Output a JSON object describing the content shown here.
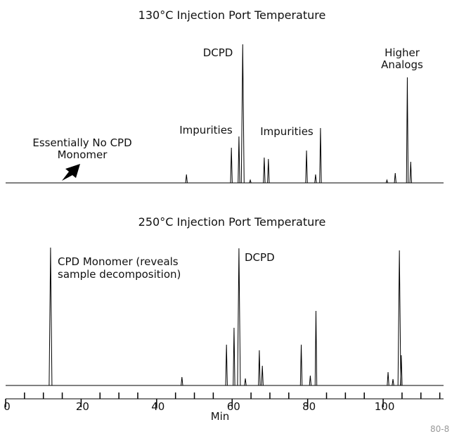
{
  "chart_data": [
    {
      "type": "chromatogram",
      "title": "130°C Injection Port Temperature",
      "annotations": [
        {
          "lines": [
            "DCPD"
          ]
        },
        {
          "lines": [
            "Higher",
            "Analogs"
          ]
        },
        {
          "lines": [
            "Impurities"
          ]
        },
        {
          "lines": [
            "Impurities"
          ]
        },
        {
          "lines": [
            "Essentially No CPD",
            "Monomer"
          ]
        }
      ],
      "x": [
        47.9,
        59.8,
        61.8,
        62.8,
        64.8,
        68.5,
        69.6,
        79.7,
        82.1,
        83.4,
        101,
        103.2,
        106.4,
        107.3
      ],
      "values": [
        6,
        25,
        33,
        98.5,
        2,
        18,
        17,
        23,
        6,
        39,
        2,
        7,
        75,
        15
      ],
      "color": "#000000",
      "xlim": [
        0,
        116
      ],
      "ylim": [
        0,
        100
      ]
    },
    {
      "type": "chromatogram",
      "title": "250°C Injection Port Temperature",
      "annotations": [
        {
          "lines": [
            "CPD Monomer (reveals",
            "sample decomposition)"
          ]
        },
        {
          "lines": [
            "DCPD"
          ]
        }
      ],
      "x": [
        11.9,
        46.7,
        58.5,
        60.5,
        61.8,
        63.5,
        67.2,
        68,
        78.3,
        80.7,
        82.2,
        101.3,
        102.6,
        104.3,
        104.8
      ],
      "values": [
        98,
        6,
        29,
        41,
        97.5,
        5,
        25,
        14,
        29,
        7,
        53,
        9.5,
        4.5,
        96,
        21.5
      ],
      "color": "#000000",
      "xlim": [
        0,
        116
      ],
      "ylim": [
        0,
        100
      ],
      "xlabel": "Min",
      "xticks": [
        0,
        20,
        40,
        60,
        80,
        100
      ],
      "minor_xticks": [
        5,
        10,
        15,
        25,
        30,
        35,
        45,
        50,
        55,
        65,
        70,
        75,
        85,
        90,
        95,
        105,
        110,
        115
      ],
      "figure_code": "80-8"
    }
  ]
}
